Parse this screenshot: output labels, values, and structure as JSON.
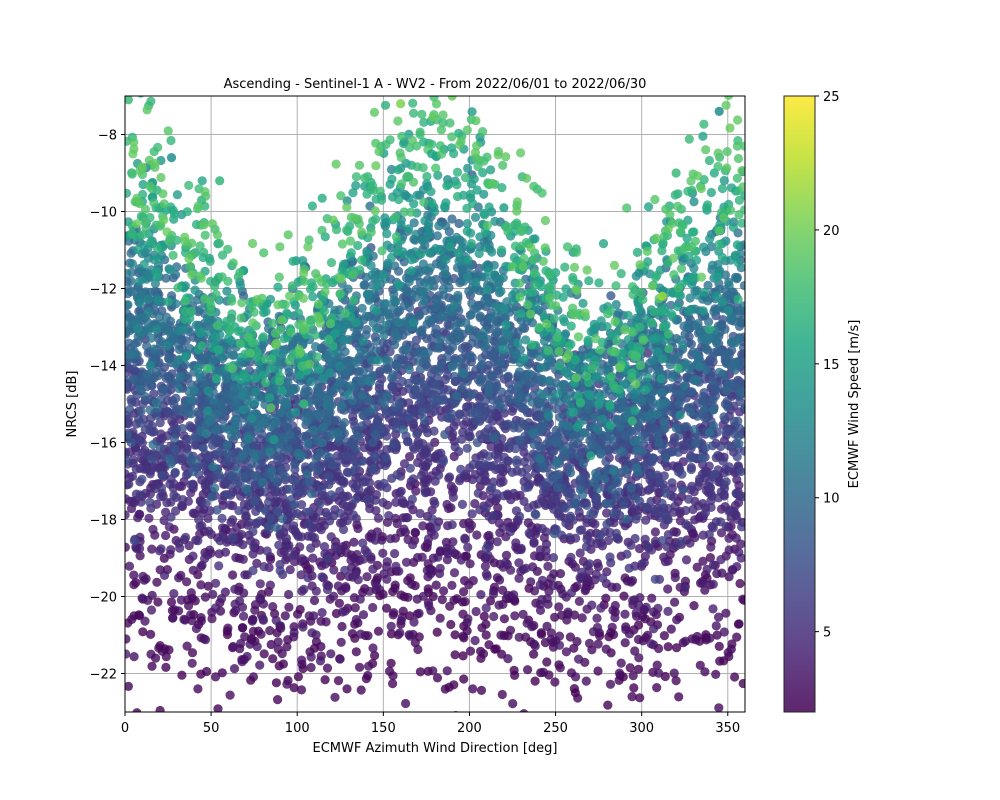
{
  "chart_data": {
    "type": "scatter",
    "title": "Ascending - Sentinel-1 A - WV2 - From 2022/06/01 to 2022/06/30",
    "xlabel": "ECMWF Azimuth Wind Direction [deg]",
    "ylabel": "NRCS [dB]",
    "xlim": [
      0,
      360
    ],
    "ylim": [
      -23,
      -7
    ],
    "xticks": [
      0,
      50,
      100,
      150,
      200,
      250,
      300,
      350
    ],
    "yticks": [
      -22,
      -20,
      -18,
      -16,
      -14,
      -12,
      -10,
      -8
    ],
    "grid": true,
    "legend": "none",
    "colorbar": {
      "label": "ECMWF Wind Speed [m/s]",
      "colormap": "viridis",
      "range": [
        2,
        25
      ],
      "ticks": [
        5,
        10,
        15,
        20,
        25
      ]
    },
    "model": {
      "description_points": "Dense scatter of NRCS vs wind direction colored by wind speed",
      "x_range": [
        0,
        360
      ],
      "upwind_peaks_deg": [
        0,
        360
      ],
      "downwind_peak_deg": 180,
      "crosswind_minima_deg": [
        90,
        270
      ]
    },
    "sample_points": [
      {
        "x": 2,
        "y": -7.1,
        "speed": 17.5
      },
      {
        "x": 190,
        "y": -7.0,
        "speed": 19.5
      },
      {
        "x": 160,
        "y": -7.2,
        "speed": 20.5
      },
      {
        "x": 27,
        "y": -8.6,
        "speed": 13.5
      },
      {
        "x": 55,
        "y": -9.2,
        "speed": 17.0
      },
      {
        "x": 312,
        "y": -12.2,
        "speed": 21.5
      },
      {
        "x": 345,
        "y": -7.4,
        "speed": 13.0
      },
      {
        "x": 178,
        "y": -8.5,
        "speed": 15.5
      },
      {
        "x": 220,
        "y": -9.9,
        "speed": 15.0
      },
      {
        "x": 320,
        "y": -9.0,
        "speed": 17.5
      }
    ]
  },
  "colors": {
    "grid": "#b0b0b0",
    "axis": "#000000"
  }
}
